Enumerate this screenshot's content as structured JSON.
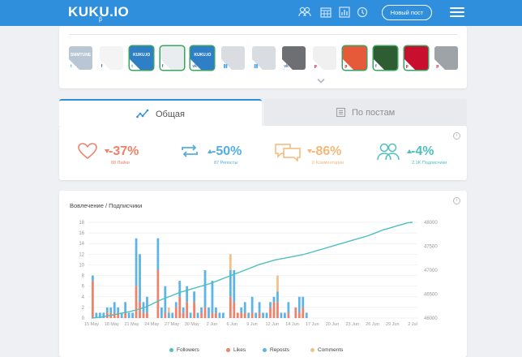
{
  "header": {
    "logo": "KUKU.IO",
    "logo_sub": "β",
    "new_post_label": "Новый пост",
    "nav_icons": [
      "people-icon",
      "calendar-icon",
      "analytics-icon",
      "history-icon"
    ]
  },
  "accounts": [
    {
      "bg": "#b9c7d4",
      "net": "twitter",
      "text": "SMMTUNE"
    },
    {
      "bg": "#f4f4f4",
      "net": "facebook",
      "text": ""
    },
    {
      "bg": "#2f7fc7",
      "net": "twitter",
      "text": "KUKU.IO",
      "selected": true
    },
    {
      "bg": "#e9edf0",
      "net": "facebook",
      "text": "",
      "selected": true
    },
    {
      "bg": "#2f7fc7",
      "net": "vk",
      "text": "KUKU.IO",
      "selected": true
    },
    {
      "bg": "#d9dde2",
      "net": "link",
      "text": ""
    },
    {
      "bg": "#d9dde2",
      "net": "link",
      "text": ""
    },
    {
      "bg": "#6d6f73",
      "net": "vk",
      "text": ""
    },
    {
      "bg": "#f0f0f0",
      "net": "pinterest",
      "text": ""
    },
    {
      "bg": "#e65a3a",
      "net": "pinterest",
      "text": "",
      "selected": true
    },
    {
      "bg": "#2e5d34",
      "net": "facebook",
      "text": "",
      "selected": true
    },
    {
      "bg": "#c8102e",
      "net": "pinterest",
      "text": "",
      "selected": true
    },
    {
      "bg": "#9ea3a8",
      "net": "pinterest",
      "text": ""
    }
  ],
  "tabs": {
    "general": "Общая",
    "posts": "По постам"
  },
  "stats": [
    {
      "id": "likes",
      "pct": "-37%",
      "sub": "88 Лайки",
      "color": "#f0816a",
      "trend": "down"
    },
    {
      "id": "reposts",
      "pct": "-50%",
      "sub": "87 Репосты",
      "color": "#55aedf",
      "trend": "up"
    },
    {
      "id": "comments",
      "pct": "-86%",
      "sub": "8 Комментарии",
      "color": "#f4b87a",
      "trend": "down"
    },
    {
      "id": "followers",
      "pct": "-4%",
      "sub": "2.1K Подписчики",
      "color": "#4fbfbf",
      "trend": "up"
    }
  ],
  "chart_title": "Вовлечение / Подписчики",
  "colors": {
    "followers": "#4fbfbf",
    "likes": "#f0816a",
    "reposts": "#5cb5e6",
    "comments": "#f4c08a",
    "accent": "#2f8fdc"
  },
  "chart_data": {
    "type": "bar",
    "title": "Вовлечение / Подписчики",
    "x_tick_labels": [
      "15 May",
      "18 May",
      "21 May",
      "24 May",
      "27 May",
      "30 May",
      "2 Jun",
      "6 Jun",
      "9 Jun",
      "12 Jun",
      "14 Jun",
      "17 Jun",
      "20 Jun",
      "23 Jun",
      "26 Jun",
      "29 Jun",
      "2 Jul"
    ],
    "left_axis": {
      "min": 0,
      "max": 18,
      "ticks": [
        0,
        2,
        4,
        6,
        8,
        10,
        12,
        14,
        16,
        18
      ]
    },
    "right_axis": {
      "min": 46000,
      "max": 48000,
      "ticks": [
        46000,
        46500,
        47000,
        47500,
        48000
      ]
    },
    "stacked": true,
    "series": [
      {
        "name": "Likes",
        "type": "bar",
        "values": [
          7,
          0,
          0,
          0,
          1,
          1,
          1,
          1,
          0,
          1,
          0,
          0,
          6,
          3,
          1,
          1,
          0,
          0,
          9,
          0,
          1,
          0,
          0,
          2,
          4,
          1,
          3,
          0,
          3,
          0,
          1,
          2,
          0,
          1,
          1,
          0,
          0,
          0,
          4,
          3,
          1,
          1,
          1,
          0,
          1,
          0,
          1,
          0,
          0,
          2,
          3,
          3,
          0,
          0,
          1,
          0,
          2,
          1,
          2,
          0,
          0,
          0,
          0,
          0,
          0,
          0,
          0,
          0,
          0,
          0,
          0,
          0,
          0,
          0,
          0,
          0,
          0,
          0,
          0,
          0,
          0,
          0,
          0,
          0,
          0,
          0,
          0,
          0,
          0
        ]
      },
      {
        "name": "Reposts",
        "type": "bar",
        "values": [
          1,
          1,
          1,
          1,
          1,
          1,
          2,
          1,
          1,
          2,
          1,
          1,
          9,
          9,
          2,
          3,
          0,
          0,
          6,
          2,
          5,
          1,
          1,
          1,
          3,
          1,
          3,
          1,
          2,
          1,
          1,
          7,
          2,
          6,
          1,
          1,
          1,
          0,
          5,
          6,
          0,
          1,
          2,
          1,
          3,
          1,
          2,
          1,
          1,
          1,
          1,
          2,
          1,
          1,
          2,
          0,
          0,
          3,
          2,
          1,
          0,
          0,
          0,
          0,
          0,
          0,
          0,
          0,
          0,
          0,
          0,
          0,
          0,
          0,
          0,
          0,
          0,
          0,
          0,
          0,
          0,
          0,
          0,
          0,
          0,
          0,
          0,
          0,
          0
        ]
      },
      {
        "name": "Comments",
        "type": "bar",
        "values": [
          0,
          0,
          0,
          0,
          0,
          0,
          0,
          0,
          0,
          0,
          0,
          0,
          0,
          0,
          0,
          0,
          0,
          0,
          0,
          0,
          0,
          1,
          0,
          0,
          0,
          0,
          0,
          0,
          0,
          0,
          0,
          0,
          0,
          0,
          0,
          0,
          0,
          0,
          3,
          0,
          0,
          0,
          0,
          0,
          0,
          0,
          0,
          0,
          0,
          0,
          0,
          3,
          0,
          0,
          0,
          0,
          0,
          0,
          0,
          0,
          0,
          0,
          0,
          0,
          0,
          0,
          0,
          0,
          0,
          0,
          0,
          0,
          0,
          0,
          0,
          0,
          0,
          0,
          0,
          0,
          0,
          0,
          0,
          0,
          0,
          0,
          0,
          0,
          0
        ]
      },
      {
        "name": "Followers",
        "type": "line",
        "axis": "right",
        "values": [
          46000,
          46010,
          46020,
          46040,
          46060,
          46080,
          46100,
          46120,
          46140,
          46170,
          46200,
          46230,
          46280,
          46330,
          46380,
          46420,
          46460,
          46500,
          46540,
          46570,
          46600,
          46630,
          46660,
          46690,
          46720,
          46760,
          46800,
          46840,
          46880,
          46920,
          46960,
          47000,
          47040,
          47080,
          47120,
          47150,
          47180,
          47210,
          47230,
          47250,
          47270,
          47290,
          47310,
          47330,
          47360,
          47390,
          47420,
          47450,
          47480,
          47510,
          47540,
          47570,
          47600,
          47630,
          47660,
          47690,
          47720,
          47760,
          47800,
          47840,
          47870,
          47900,
          47930,
          47960,
          47990,
          48000
        ]
      }
    ],
    "legend": [
      "Followers",
      "Likes",
      "Reposts",
      "Comments"
    ],
    "legend_position": "bottom"
  }
}
